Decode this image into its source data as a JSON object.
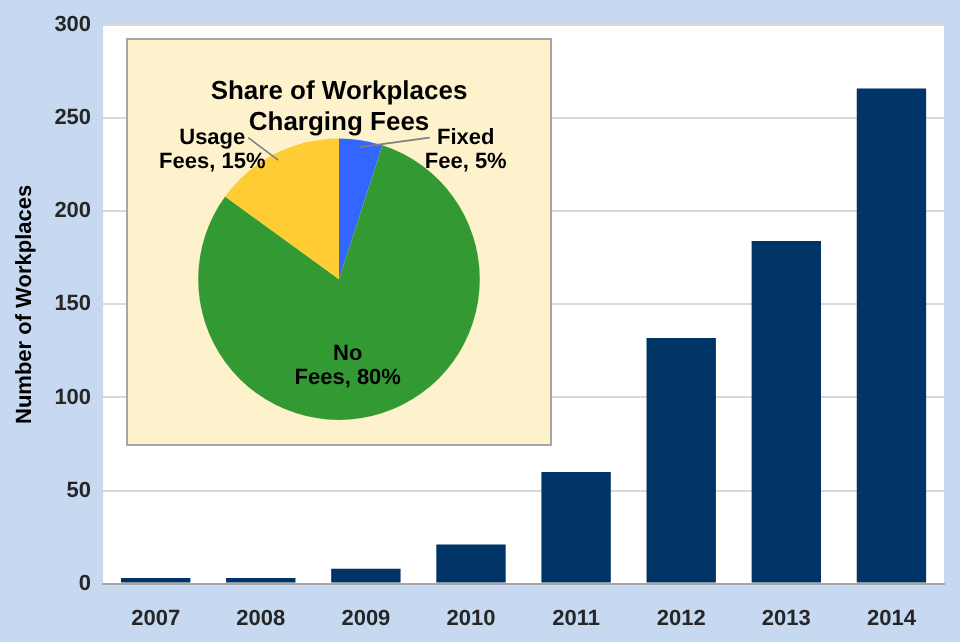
{
  "chart_data": [
    {
      "type": "bar",
      "ylabel": "Number of Workplaces",
      "categories": [
        "2007",
        "2008",
        "2009",
        "2010",
        "2011",
        "2012",
        "2013",
        "2014"
      ],
      "values": [
        3,
        3,
        8,
        21,
        60,
        132,
        184,
        266
      ],
      "color": "#003366",
      "ylim": [
        0,
        300
      ],
      "yticks": [
        0,
        50,
        100,
        150,
        200,
        250,
        300
      ],
      "grid": "y",
      "legend": false
    },
    {
      "type": "pie",
      "title": "Share of Workplaces Charging Fees",
      "categories": [
        "Fixed Fee",
        "No Fees",
        "Usage Fees"
      ],
      "values": [
        5,
        80,
        15
      ],
      "value_labels": [
        "5%",
        "80%",
        "15%"
      ],
      "colors": [
        "#3366ff",
        "#339933",
        "#ffcc33"
      ],
      "legend": false
    }
  ]
}
